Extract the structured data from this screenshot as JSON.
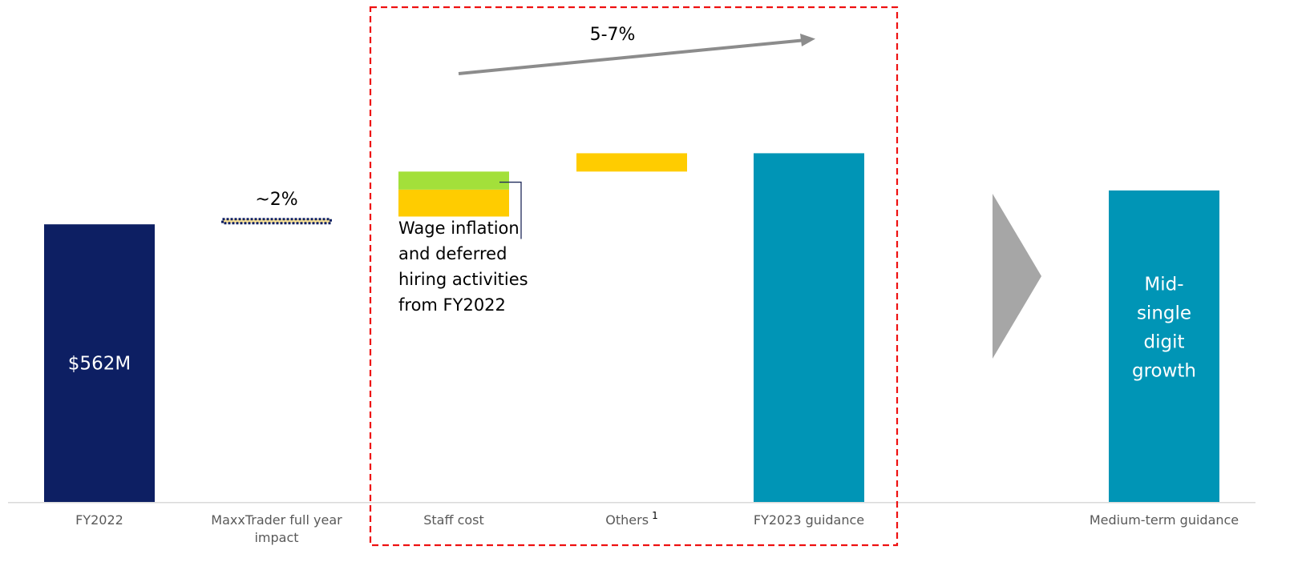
{
  "chart_data": {
    "type": "bar",
    "subtype": "waterfall",
    "categories": [
      "FY2022",
      "MaxxTrader full year impact",
      "Staff cost",
      "Others",
      "FY2023 guidance",
      "Medium-term guidance"
    ],
    "category_lines": [
      [
        "FY2022"
      ],
      [
        "MaxxTrader full year",
        "impact"
      ],
      [
        "Staff cost"
      ],
      [
        "Others"
      ],
      [
        "FY2023 guidance"
      ],
      [
        "Medium-term guidance"
      ]
    ],
    "footnote_marks": {
      "Others": "1"
    },
    "bars": [
      {
        "category": "FY2022",
        "kind": "total",
        "base": 0,
        "top": 100,
        "color": "#0D1F63",
        "label_lines": [
          "$562M"
        ]
      },
      {
        "category": "MaxxTrader full year impact",
        "kind": "increment",
        "base": 100,
        "top": 102.3,
        "color": "#FFE699",
        "style": "dotted-outline",
        "outline_color": "#0D1F63",
        "top_label": "~2%"
      },
      {
        "category": "Staff cost",
        "kind": "increment",
        "segments": [
          {
            "base": 102.8,
            "top": 112.5,
            "color": "#FFCC00"
          },
          {
            "base": 112.5,
            "top": 119.0,
            "color": "#A3E03A"
          }
        ]
      },
      {
        "category": "Others",
        "kind": "increment",
        "base": 119.0,
        "top": 125.6,
        "color": "#FFCC00"
      },
      {
        "category": "FY2023 guidance",
        "kind": "total",
        "base": 0,
        "top": 125.6,
        "color": "#0095B6"
      },
      {
        "category": "Medium-term guidance",
        "kind": "total",
        "base": 0,
        "top": 112.2,
        "color": "#0095B6",
        "label_lines": [
          "Mid-",
          "single",
          "digit",
          "growth"
        ]
      }
    ],
    "annotations": {
      "growth_range": "5-7%",
      "staff_cost_note_lines": [
        "Wage inflation",
        "and deferred",
        "hiring activities",
        "from FY2022"
      ]
    },
    "colors": {
      "highlight_box": "#EE1111",
      "arrow": "#8C8C8C",
      "chevron": "#A6A6A6",
      "axis": "#D9D9D9"
    },
    "grid": false,
    "legend": "none"
  }
}
